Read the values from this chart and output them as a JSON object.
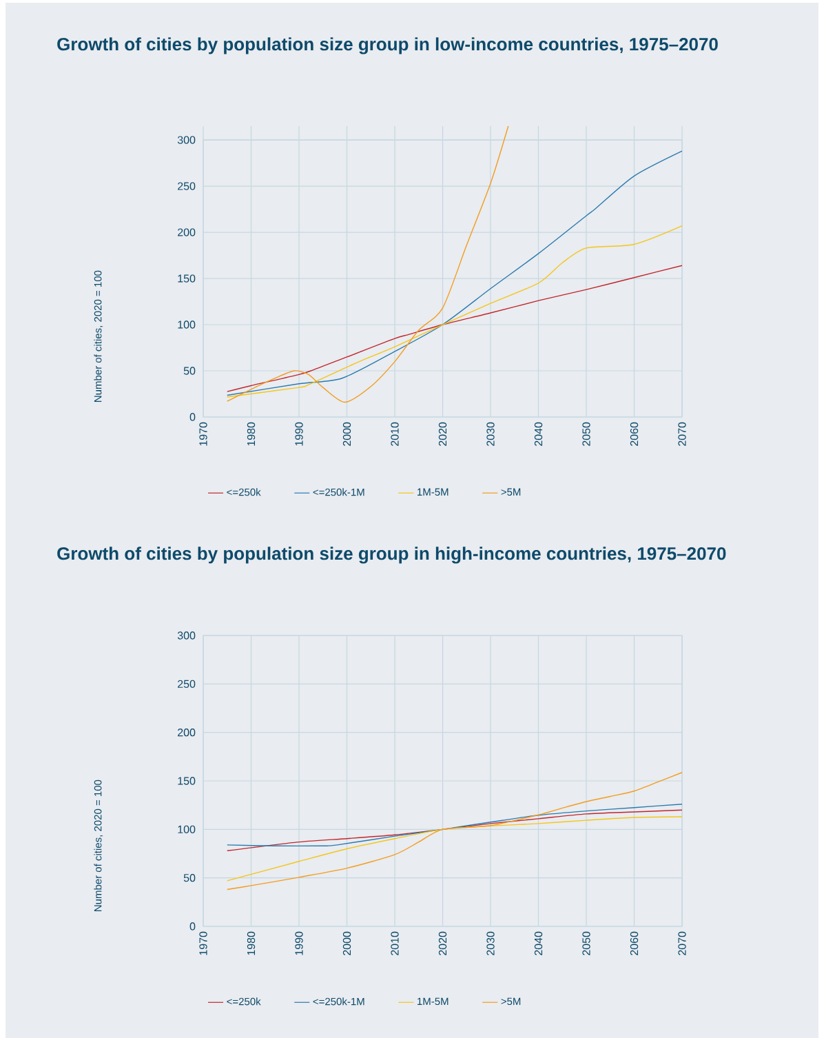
{
  "chart_data": [
    {
      "type": "line",
      "title": "Growth of cities by population size group in low-income countries, 1975–2070",
      "ylabel": "Number of cities, 2020 = 100",
      "xlim": [
        1970,
        2070
      ],
      "ylim": [
        0,
        315
      ],
      "xticks": [
        1970,
        1980,
        1990,
        2000,
        2010,
        2020,
        2030,
        2040,
        2050,
        2060,
        2070
      ],
      "yticks": [
        0,
        50,
        100,
        150,
        200,
        250,
        300
      ],
      "grid": true,
      "legend": "bottom",
      "series": [
        {
          "name": "<=250k",
          "color": "#c0272d",
          "x": [
            1975,
            1980,
            1990,
            1993,
            2000,
            2010,
            2013,
            2020,
            2030,
            2040,
            2050,
            2060,
            2070
          ],
          "values": [
            27.5,
            34,
            46,
            51,
            65,
            85,
            89.5,
            100,
            112.7,
            126,
            138,
            151,
            164
          ]
        },
        {
          "name": "<=250k-1M",
          "color": "#2a7ab0",
          "x": [
            1975,
            1990,
            1999,
            2010,
            2020,
            2030,
            2040,
            2050,
            2052,
            2060,
            2070
          ],
          "values": [
            23.5,
            36,
            42,
            71,
            100,
            139,
            177,
            218,
            226,
            261,
            288
          ]
        },
        {
          "name": "1M-5M",
          "color": "#f5c518",
          "x": [
            1975,
            1990,
            1992,
            2000,
            2003,
            2010,
            2020,
            2030,
            2040,
            2045,
            2050,
            2060,
            2070
          ],
          "values": [
            21.6,
            32,
            35,
            54,
            61,
            76,
            100,
            123,
            145,
            167,
            183,
            187,
            207
          ]
        },
        {
          "name": ">5M",
          "color": "#f39c1e",
          "x": [
            1975,
            1980,
            1985,
            1989,
            1992,
            1995,
            1999.6,
            2005,
            2010,
            2015,
            2020,
            2025,
            2030,
            2033.7
          ],
          "values": [
            17,
            30,
            42,
            50,
            46,
            32,
            16,
            33,
            60,
            94,
            118,
            186,
            253,
            315
          ]
        }
      ]
    },
    {
      "type": "line",
      "title": "Growth of cities by population size group in high-income countries, 1975–2070",
      "ylabel": "Number of cities, 2020 = 100",
      "xlim": [
        1970,
        2070
      ],
      "ylim": [
        0,
        300
      ],
      "xticks": [
        1970,
        1980,
        1990,
        2000,
        2010,
        2020,
        2030,
        2040,
        2050,
        2060,
        2070
      ],
      "yticks": [
        0,
        50,
        100,
        150,
        200,
        250,
        300
      ],
      "grid": true,
      "legend": "bottom",
      "series": [
        {
          "name": "<=250k",
          "color": "#c0272d",
          "x": [
            1975,
            1990,
            2000,
            2010,
            2020,
            2030,
            2040,
            2050,
            2060,
            2070
          ],
          "values": [
            78,
            87,
            90.5,
            94.4,
            100,
            106,
            111,
            116,
            118,
            120
          ]
        },
        {
          "name": "<=250k-1M",
          "color": "#2a7ab0",
          "x": [
            1975,
            1985,
            1995,
            1998,
            2010,
            2020,
            2030,
            2040,
            2050,
            2060,
            2070
          ],
          "values": [
            84,
            83,
            83,
            84,
            93,
            100,
            107.5,
            114.6,
            119,
            122.5,
            126
          ]
        },
        {
          "name": "1M-5M",
          "color": "#f5c518",
          "x": [
            1975,
            1990,
            2000,
            2010,
            2020,
            2030,
            2040,
            2050,
            2060,
            2070
          ],
          "values": [
            47,
            67,
            80,
            90.5,
            100,
            103.5,
            106,
            109.4,
            112.3,
            113
          ]
        },
        {
          "name": ">5M",
          "color": "#f39c1e",
          "x": [
            1975,
            1980,
            1990,
            2000,
            2010,
            2015,
            2020,
            2030,
            2040,
            2045,
            2050,
            2055,
            2060,
            2065,
            2070
          ],
          "values": [
            38,
            42,
            50.6,
            60,
            74,
            87,
            100,
            104,
            115,
            122,
            128.7,
            134,
            139.5,
            149,
            158.7
          ]
        }
      ]
    }
  ]
}
